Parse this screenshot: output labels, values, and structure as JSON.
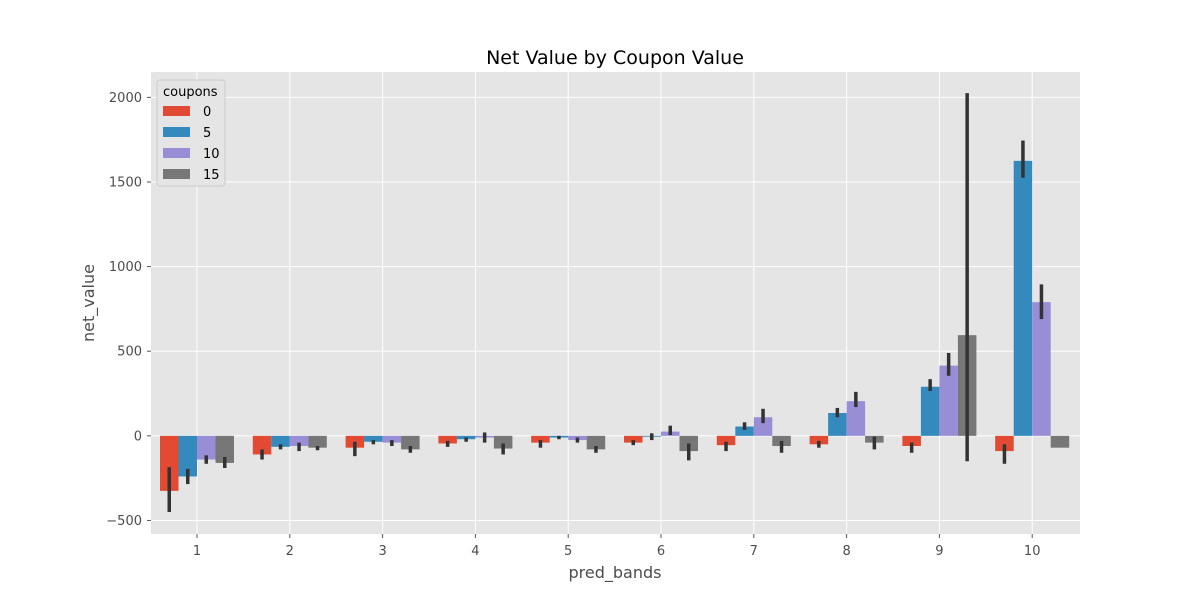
{
  "chart_data": {
    "type": "bar",
    "title": "Net Value by Coupon Value",
    "xlabel": "pred_bands",
    "ylabel": "net_value",
    "categories": [
      "1",
      "2",
      "3",
      "4",
      "5",
      "6",
      "7",
      "8",
      "9",
      "10"
    ],
    "ylim": [
      -580,
      2150
    ],
    "yticks": [
      -500,
      0,
      500,
      1000,
      1500,
      2000
    ],
    "ytick_labels": [
      "−500",
      "0",
      "500",
      "1000",
      "1500",
      "2000"
    ],
    "grid": true,
    "style": "ggplot",
    "legend": {
      "title": "coupons",
      "placement": "top-left"
    },
    "series": [
      {
        "name": "0",
        "color": "#E24A33",
        "values": [
          -325,
          -110,
          -70,
          -45,
          -40,
          -40,
          -55,
          -50,
          -60,
          -90
        ],
        "error": [
          [
            -450,
            -185
          ],
          [
            -140,
            -80
          ],
          [
            -120,
            -35
          ],
          [
            -65,
            -30
          ],
          [
            -70,
            -25
          ],
          [
            -55,
            -25
          ],
          [
            -90,
            -35
          ],
          [
            -70,
            -30
          ],
          [
            -100,
            -40
          ],
          [
            -165,
            -50
          ]
        ]
      },
      {
        "name": "5",
        "color": "#348ABD",
        "values": [
          -240,
          -65,
          -35,
          -20,
          -10,
          -5,
          55,
          135,
          290,
          1625
        ],
        "error": [
          [
            -285,
            -195
          ],
          [
            -80,
            -50
          ],
          [
            -50,
            -25
          ],
          [
            -35,
            -10
          ],
          [
            -20,
            0
          ],
          [
            -25,
            15
          ],
          [
            35,
            80
          ],
          [
            110,
            165
          ],
          [
            265,
            335
          ],
          [
            1525,
            1745
          ]
        ]
      },
      {
        "name": "10",
        "color": "#988ED5",
        "values": [
          -140,
          -60,
          -40,
          -10,
          -25,
          25,
          110,
          205,
          415,
          790
        ],
        "error": [
          [
            -165,
            -115
          ],
          [
            -90,
            -40
          ],
          [
            -60,
            -25
          ],
          [
            -40,
            20
          ],
          [
            -40,
            -10
          ],
          [
            5,
            60
          ],
          [
            75,
            160
          ],
          [
            170,
            260
          ],
          [
            355,
            490
          ],
          [
            690,
            895
          ]
        ]
      },
      {
        "name": "15",
        "color": "#777777",
        "values": [
          -160,
          -70,
          -80,
          -75,
          -80,
          -90,
          -60,
          -40,
          595,
          -70
        ],
        "error": [
          [
            -190,
            -125
          ],
          [
            -85,
            -60
          ],
          [
            -100,
            -60
          ],
          [
            -110,
            -45
          ],
          [
            -100,
            -60
          ],
          [
            -145,
            -45
          ],
          [
            -100,
            -30
          ],
          [
            -80,
            -5
          ],
          [
            -150,
            2025
          ],
          [
            -70,
            -70
          ]
        ]
      }
    ]
  }
}
